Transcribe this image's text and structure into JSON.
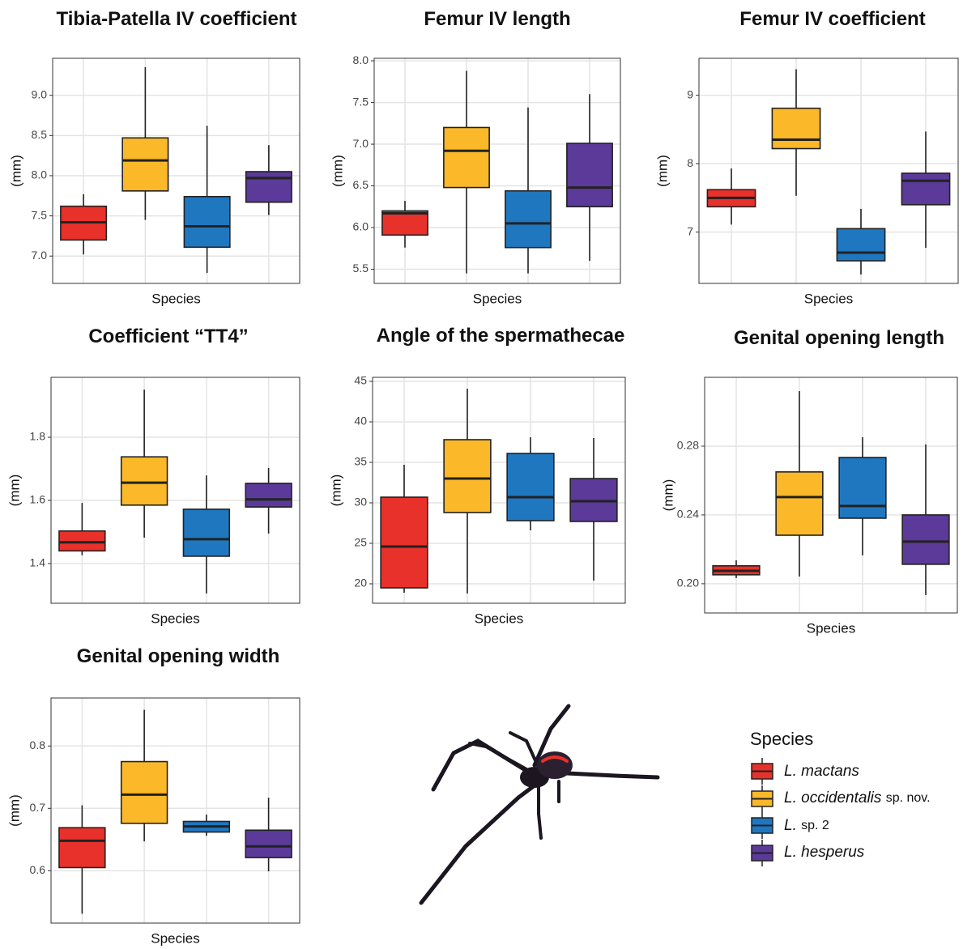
{
  "chart_data": [
    {
      "type": "box",
      "title": "Tibia-Patella IV coefficient",
      "y_label": "(mm)",
      "x_label": "Species",
      "ylim": [
        6.66,
        9.46
      ],
      "yticks": [
        {
          "value": 7,
          "label": "7.0"
        },
        7.5,
        {
          "value": 8,
          "label": "8.0"
        },
        8.5,
        {
          "value": 9,
          "label": "9.0"
        }
      ],
      "grid": true,
      "boxes": [
        {
          "whislo": 7.02,
          "q1": 7.2,
          "med": 7.42,
          "q3": 7.62,
          "whishi": 7.77
        },
        {
          "whislo": 7.45,
          "q1": 7.81,
          "med": 8.19,
          "q3": 8.47,
          "whishi": 9.35
        },
        {
          "whislo": 6.79,
          "q1": 7.11,
          "med": 7.37,
          "q3": 7.74,
          "whishi": 8.62
        },
        {
          "whislo": 7.51,
          "q1": 7.67,
          "med": 7.97,
          "q3": 8.05,
          "whishi": 8.38
        }
      ]
    },
    {
      "type": "box",
      "title": "Femur IV length",
      "y_label": "(mm)",
      "x_label": "Species",
      "ylim": [
        5.33,
        8.03
      ],
      "yticks": [
        5.5,
        {
          "value": 6,
          "label": "6.0"
        },
        6.5,
        {
          "value": 7,
          "label": "7.0"
        },
        7.5,
        {
          "value": 8,
          "label": "8.0"
        }
      ],
      "grid": true,
      "boxes": [
        {
          "whislo": 5.76,
          "q1": 5.91,
          "med": 6.17,
          "q3": 6.2,
          "whishi": 6.32
        },
        {
          "whislo": 5.45,
          "q1": 6.48,
          "med": 6.92,
          "q3": 7.2,
          "whishi": 7.88
        },
        {
          "whislo": 5.45,
          "q1": 5.76,
          "med": 6.05,
          "q3": 6.44,
          "whishi": 7.44
        },
        {
          "whislo": 5.6,
          "q1": 6.25,
          "med": 6.48,
          "q3": 7.01,
          "whishi": 7.6
        }
      ]
    },
    {
      "type": "box",
      "title": "Femur IV coefficient",
      "y_label": "(mm)",
      "x_label": "Species",
      "ylim": [
        6.25,
        9.54
      ],
      "yticks": [
        7,
        8,
        9
      ],
      "grid": true,
      "boxes": [
        {
          "whislo": 7.11,
          "q1": 7.37,
          "med": 7.5,
          "q3": 7.62,
          "whishi": 7.93
        },
        {
          "whislo": 7.53,
          "q1": 8.22,
          "med": 8.35,
          "q3": 8.81,
          "whishi": 9.38
        },
        {
          "whislo": 6.38,
          "q1": 6.58,
          "med": 6.7,
          "q3": 7.05,
          "whishi": 7.34
        },
        {
          "whislo": 6.77,
          "q1": 7.4,
          "med": 7.75,
          "q3": 7.86,
          "whishi": 8.47
        }
      ]
    },
    {
      "type": "box",
      "title": "Coefficient “TT4”",
      "y_label": "(mm)",
      "x_label": "Species",
      "ylim": [
        1.274,
        1.99
      ],
      "yticks": [
        1.4,
        1.6,
        1.8
      ],
      "grid": true,
      "boxes": [
        {
          "whislo": 1.426,
          "q1": 1.44,
          "med": 1.467,
          "q3": 1.503,
          "whishi": 1.592
        },
        {
          "whislo": 1.482,
          "q1": 1.585,
          "med": 1.656,
          "q3": 1.738,
          "whishi": 1.951
        },
        {
          "whislo": 1.305,
          "q1": 1.423,
          "med": 1.477,
          "q3": 1.572,
          "whishi": 1.679
        },
        {
          "whislo": 1.495,
          "q1": 1.579,
          "med": 1.603,
          "q3": 1.654,
          "whishi": 1.703
        }
      ]
    },
    {
      "type": "box",
      "title": "Angle of the spermathecae",
      "y_label": "(mm)",
      "x_label": "Species",
      "ylim": [
        17.6,
        45.5
      ],
      "yticks": [
        20,
        25,
        30,
        35,
        40,
        45
      ],
      "grid": true,
      "boxes": [
        {
          "whislo": 18.9,
          "q1": 19.5,
          "med": 24.6,
          "q3": 30.7,
          "whishi": 34.7
        },
        {
          "whislo": 18.8,
          "q1": 28.8,
          "med": 33.0,
          "q3": 37.8,
          "whishi": 44.1
        },
        {
          "whislo": 26.6,
          "q1": 27.8,
          "med": 30.7,
          "q3": 36.1,
          "whishi": 38.1
        },
        {
          "whislo": 20.4,
          "q1": 27.7,
          "med": 30.2,
          "q3": 33.0,
          "whishi": 38.0
        }
      ]
    },
    {
      "type": "box",
      "title": "Genital opening length",
      "y_label": "(mm)",
      "x_label": "Species",
      "ylim": [
        0.183,
        0.32
      ],
      "yticks": [
        {
          "value": 0.2,
          "label": "0.20"
        },
        0.24,
        0.28
      ],
      "grid": true,
      "boxes": [
        {
          "whislo": 0.2033,
          "q1": 0.2052,
          "med": 0.2075,
          "q3": 0.2104,
          "whishi": 0.2136
        },
        {
          "whislo": 0.2042,
          "q1": 0.2282,
          "med": 0.2504,
          "q3": 0.265,
          "whishi": 0.312
        },
        {
          "whislo": 0.2165,
          "q1": 0.2381,
          "med": 0.2452,
          "q3": 0.2734,
          "whishi": 0.2852
        },
        {
          "whislo": 0.1934,
          "q1": 0.2113,
          "med": 0.2245,
          "q3": 0.24,
          "whishi": 0.281
        }
      ]
    },
    {
      "type": "box",
      "title": "Genital opening width",
      "y_label": "(mm)",
      "x_label": "Species",
      "ylim": [
        0.516,
        0.877
      ],
      "yticks": [
        0.6,
        0.7,
        0.8
      ],
      "grid": true,
      "boxes": [
        {
          "whislo": 0.531,
          "q1": 0.605,
          "med": 0.648,
          "q3": 0.669,
          "whishi": 0.705
        },
        {
          "whislo": 0.647,
          "q1": 0.676,
          "med": 0.722,
          "q3": 0.775,
          "whishi": 0.858
        },
        {
          "whislo": 0.656,
          "q1": 0.662,
          "med": 0.671,
          "q3": 0.679,
          "whishi": 0.69
        },
        {
          "whislo": 0.599,
          "q1": 0.621,
          "med": 0.639,
          "q3": 0.665,
          "whishi": 0.717
        }
      ]
    }
  ],
  "legend": {
    "title": "Species",
    "items": [
      {
        "name": "L. mactans",
        "color": "#e8312a"
      },
      {
        "name": "L. occidentalis",
        "suffix": "sp. nov.",
        "color": "#fbb829"
      },
      {
        "name": "L.",
        "suffix": "sp. 2",
        "color": "#1f77c0"
      },
      {
        "name": "L. hesperus",
        "color": "#5b3a99"
      }
    ]
  }
}
